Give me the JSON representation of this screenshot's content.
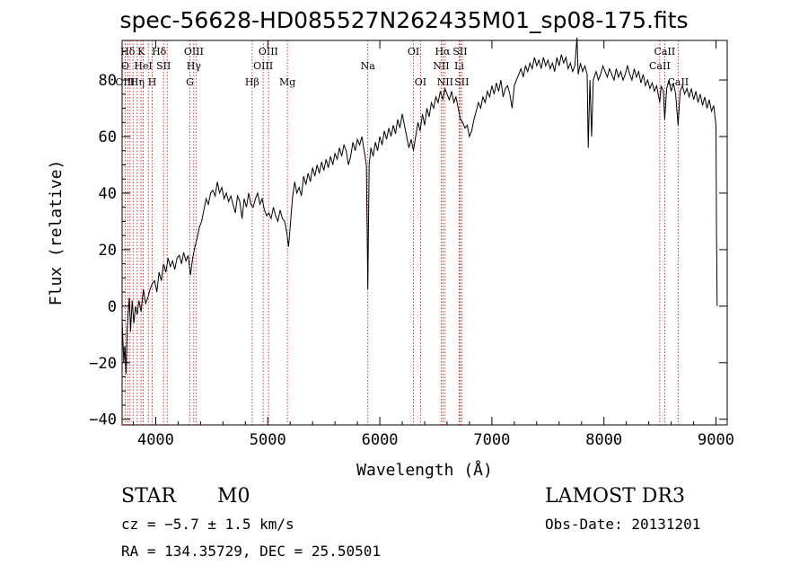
{
  "title": "spec-56628-HD085527N262435M01_sp08-175.fits",
  "info": {
    "class": "STAR",
    "subclass": "M0",
    "survey": "LAMOST DR3",
    "cz": "cz = −5.7 ± 1.5 km/s",
    "obs_date": "Obs-Date: 20131201",
    "coords": "RA = 134.35729, DEC =  25.50501"
  },
  "chart_data": {
    "type": "line",
    "xlabel": "Wavelength (Å)",
    "ylabel": "Flux (relative)",
    "xlim": [
      3700,
      9100
    ],
    "ylim": [
      -42,
      94
    ],
    "xticks": [
      4000,
      5000,
      6000,
      7000,
      8000,
      9000
    ],
    "yticks": [
      -40,
      -20,
      0,
      20,
      40,
      60,
      80
    ],
    "line_color": "#cc0000",
    "spectrum_color": "#000000",
    "lines": [
      {
        "label": "Hδ",
        "x": 3750,
        "row": 0
      },
      {
        "label": "K",
        "x": 3870,
        "row": 0
      },
      {
        "label": "Hδ",
        "x": 4030,
        "row": 0
      },
      {
        "label": "OIII",
        "x": 4340,
        "row": 0
      },
      {
        "label": "OIII",
        "x": 5005,
        "row": 0
      },
      {
        "label": "OI",
        "x": 6300,
        "row": 0
      },
      {
        "label": "Hα",
        "x": 6560,
        "row": 0
      },
      {
        "label": "SII",
        "x": 6716,
        "row": 0
      },
      {
        "label": "CaII",
        "x": 8542,
        "row": 0
      },
      {
        "label": "O",
        "x": 3727,
        "row": 1
      },
      {
        "label": "HeI",
        "x": 3889,
        "row": 1
      },
      {
        "label": "SII",
        "x": 4070,
        "row": 1
      },
      {
        "label": "Hγ",
        "x": 4340,
        "row": 1
      },
      {
        "label": "OIII",
        "x": 4959,
        "row": 1
      },
      {
        "label": "Na",
        "x": 5893,
        "row": 1
      },
      {
        "label": "NII",
        "x": 6548,
        "row": 1
      },
      {
        "label": "Li",
        "x": 6708,
        "row": 1
      },
      {
        "label": "CaII",
        "x": 8498,
        "row": 1
      },
      {
        "label": "OIII",
        "x": 3727,
        "row": 2
      },
      {
        "label": "Hη",
        "x": 3835,
        "row": 2
      },
      {
        "label": "H",
        "x": 3969,
        "row": 2
      },
      {
        "label": "G",
        "x": 4305,
        "row": 2
      },
      {
        "label": "Hβ",
        "x": 4861,
        "row": 2
      },
      {
        "label": "Mg",
        "x": 5175,
        "row": 2
      },
      {
        "label": "OI",
        "x": 6363,
        "row": 2
      },
      {
        "label": "NII",
        "x": 6583,
        "row": 2
      },
      {
        "label": "SII",
        "x": 6731,
        "row": 2
      },
      {
        "label": "CaII",
        "x": 8662,
        "row": 2
      }
    ],
    "line_markers": [
      3727,
      3750,
      3771,
      3798,
      3835,
      3869,
      3889,
      3934,
      3969,
      4070,
      4102,
      4305,
      4340,
      4363,
      4861,
      4959,
      5007,
      5175,
      5893,
      6300,
      6363,
      6548,
      6563,
      6583,
      6708,
      6716,
      6731,
      8498,
      8542,
      8662
    ],
    "spectrum": [
      [
        3700,
        -5
      ],
      [
        3715,
        -20
      ],
      [
        3725,
        -14
      ],
      [
        3735,
        -24
      ],
      [
        3745,
        -8
      ],
      [
        3755,
        -2
      ],
      [
        3765,
        3
      ],
      [
        3775,
        -9
      ],
      [
        3790,
        2
      ],
      [
        3805,
        -6
      ],
      [
        3820,
        0
      ],
      [
        3835,
        -3
      ],
      [
        3850,
        2
      ],
      [
        3870,
        -2
      ],
      [
        3890,
        6
      ],
      [
        3910,
        1
      ],
      [
        3930,
        3
      ],
      [
        3950,
        6
      ],
      [
        3970,
        8
      ],
      [
        3990,
        9
      ],
      [
        4010,
        5
      ],
      [
        4030,
        12
      ],
      [
        4050,
        9
      ],
      [
        4070,
        15
      ],
      [
        4090,
        12
      ],
      [
        4110,
        17
      ],
      [
        4130,
        14
      ],
      [
        4150,
        16
      ],
      [
        4170,
        13
      ],
      [
        4190,
        17
      ],
      [
        4210,
        18
      ],
      [
        4230,
        15
      ],
      [
        4250,
        19
      ],
      [
        4270,
        16
      ],
      [
        4290,
        18
      ],
      [
        4310,
        11
      ],
      [
        4330,
        17
      ],
      [
        4350,
        21
      ],
      [
        4370,
        24
      ],
      [
        4390,
        28
      ],
      [
        4410,
        30
      ],
      [
        4430,
        34
      ],
      [
        4450,
        38
      ],
      [
        4470,
        36
      ],
      [
        4490,
        40
      ],
      [
        4510,
        41
      ],
      [
        4530,
        39
      ],
      [
        4550,
        44
      ],
      [
        4570,
        40
      ],
      [
        4590,
        42
      ],
      [
        4610,
        38
      ],
      [
        4630,
        40
      ],
      [
        4650,
        37
      ],
      [
        4670,
        39
      ],
      [
        4690,
        36
      ],
      [
        4710,
        33
      ],
      [
        4730,
        39
      ],
      [
        4750,
        37
      ],
      [
        4770,
        31
      ],
      [
        4790,
        38
      ],
      [
        4810,
        35
      ],
      [
        4830,
        40
      ],
      [
        4850,
        36
      ],
      [
        4870,
        35
      ],
      [
        4890,
        38
      ],
      [
        4910,
        40
      ],
      [
        4930,
        36
      ],
      [
        4950,
        38
      ],
      [
        4970,
        34
      ],
      [
        4990,
        32
      ],
      [
        5010,
        33
      ],
      [
        5030,
        31
      ],
      [
        5050,
        35
      ],
      [
        5070,
        32
      ],
      [
        5090,
        30
      ],
      [
        5110,
        34
      ],
      [
        5130,
        31
      ],
      [
        5150,
        30
      ],
      [
        5170,
        26
      ],
      [
        5185,
        21
      ],
      [
        5200,
        28
      ],
      [
        5220,
        38
      ],
      [
        5240,
        44
      ],
      [
        5260,
        40
      ],
      [
        5280,
        42
      ],
      [
        5300,
        39
      ],
      [
        5320,
        46
      ],
      [
        5340,
        43
      ],
      [
        5360,
        47
      ],
      [
        5380,
        44
      ],
      [
        5400,
        49
      ],
      [
        5420,
        46
      ],
      [
        5440,
        50
      ],
      [
        5460,
        47
      ],
      [
        5480,
        51
      ],
      [
        5500,
        48
      ],
      [
        5520,
        52
      ],
      [
        5540,
        49
      ],
      [
        5560,
        53
      ],
      [
        5580,
        50
      ],
      [
        5600,
        54
      ],
      [
        5620,
        52
      ],
      [
        5640,
        56
      ],
      [
        5660,
        53
      ],
      [
        5680,
        57
      ],
      [
        5700,
        55
      ],
      [
        5720,
        50
      ],
      [
        5740,
        53
      ],
      [
        5760,
        58
      ],
      [
        5780,
        55
      ],
      [
        5800,
        59
      ],
      [
        5820,
        57
      ],
      [
        5840,
        60
      ],
      [
        5860,
        55
      ],
      [
        5880,
        50
      ],
      [
        5893,
        6
      ],
      [
        5905,
        50
      ],
      [
        5920,
        56
      ],
      [
        5940,
        53
      ],
      [
        5960,
        58
      ],
      [
        5980,
        55
      ],
      [
        6000,
        60
      ],
      [
        6020,
        57
      ],
      [
        6040,
        62
      ],
      [
        6060,
        59
      ],
      [
        6080,
        63
      ],
      [
        6100,
        60
      ],
      [
        6120,
        64
      ],
      [
        6140,
        61
      ],
      [
        6160,
        66
      ],
      [
        6180,
        63
      ],
      [
        6200,
        68
      ],
      [
        6220,
        64
      ],
      [
        6240,
        60
      ],
      [
        6260,
        56
      ],
      [
        6280,
        59
      ],
      [
        6300,
        55
      ],
      [
        6320,
        60
      ],
      [
        6340,
        65
      ],
      [
        6360,
        62
      ],
      [
        6380,
        68
      ],
      [
        6400,
        64
      ],
      [
        6420,
        70
      ],
      [
        6440,
        67
      ],
      [
        6460,
        72
      ],
      [
        6480,
        70
      ],
      [
        6500,
        74
      ],
      [
        6520,
        72
      ],
      [
        6540,
        76
      ],
      [
        6563,
        73
      ],
      [
        6580,
        77
      ],
      [
        6600,
        75
      ],
      [
        6620,
        73
      ],
      [
        6640,
        76
      ],
      [
        6660,
        72
      ],
      [
        6680,
        74
      ],
      [
        6700,
        70
      ],
      [
        6720,
        66
      ],
      [
        6740,
        65
      ],
      [
        6760,
        63
      ],
      [
        6780,
        64
      ],
      [
        6800,
        60
      ],
      [
        6820,
        62
      ],
      [
        6840,
        66
      ],
      [
        6860,
        69
      ],
      [
        6880,
        72
      ],
      [
        6900,
        70
      ],
      [
        6920,
        74
      ],
      [
        6940,
        72
      ],
      [
        6960,
        76
      ],
      [
        6980,
        74
      ],
      [
        7000,
        78
      ],
      [
        7020,
        75
      ],
      [
        7040,
        79
      ],
      [
        7060,
        76
      ],
      [
        7080,
        80
      ],
      [
        7100,
        74
      ],
      [
        7120,
        77
      ],
      [
        7140,
        78
      ],
      [
        7160,
        75
      ],
      [
        7180,
        70
      ],
      [
        7200,
        78
      ],
      [
        7220,
        80
      ],
      [
        7240,
        82
      ],
      [
        7260,
        84
      ],
      [
        7280,
        81
      ],
      [
        7300,
        85
      ],
      [
        7320,
        83
      ],
      [
        7340,
        86
      ],
      [
        7360,
        84
      ],
      [
        7380,
        88
      ],
      [
        7400,
        85
      ],
      [
        7420,
        87
      ],
      [
        7440,
        84
      ],
      [
        7460,
        88
      ],
      [
        7480,
        85
      ],
      [
        7500,
        87
      ],
      [
        7520,
        84
      ],
      [
        7540,
        86
      ],
      [
        7560,
        83
      ],
      [
        7580,
        88
      ],
      [
        7600,
        85
      ],
      [
        7620,
        89
      ],
      [
        7640,
        86
      ],
      [
        7660,
        88
      ],
      [
        7680,
        84
      ],
      [
        7700,
        86
      ],
      [
        7720,
        83
      ],
      [
        7740,
        85
      ],
      [
        7760,
        95
      ],
      [
        7770,
        82
      ],
      [
        7790,
        86
      ],
      [
        7810,
        83
      ],
      [
        7830,
        85
      ],
      [
        7850,
        82
      ],
      [
        7860,
        56
      ],
      [
        7875,
        80
      ],
      [
        7890,
        60
      ],
      [
        7905,
        80
      ],
      [
        7930,
        83
      ],
      [
        7950,
        80
      ],
      [
        7970,
        82
      ],
      [
        7990,
        85
      ],
      [
        8010,
        83
      ],
      [
        8030,
        81
      ],
      [
        8050,
        84
      ],
      [
        8070,
        82
      ],
      [
        8090,
        80
      ],
      [
        8110,
        84
      ],
      [
        8130,
        81
      ],
      [
        8150,
        83
      ],
      [
        8170,
        80
      ],
      [
        8190,
        82
      ],
      [
        8210,
        85
      ],
      [
        8230,
        82
      ],
      [
        8250,
        80
      ],
      [
        8270,
        84
      ],
      [
        8290,
        81
      ],
      [
        8310,
        83
      ],
      [
        8330,
        79
      ],
      [
        8350,
        82
      ],
      [
        8370,
        78
      ],
      [
        8390,
        80
      ],
      [
        8410,
        77
      ],
      [
        8430,
        79
      ],
      [
        8450,
        76
      ],
      [
        8470,
        78
      ],
      [
        8498,
        72
      ],
      [
        8510,
        78
      ],
      [
        8530,
        76
      ],
      [
        8542,
        66
      ],
      [
        8560,
        77
      ],
      [
        8580,
        80
      ],
      [
        8600,
        76
      ],
      [
        8620,
        79
      ],
      [
        8640,
        75
      ],
      [
        8662,
        64
      ],
      [
        8680,
        76
      ],
      [
        8700,
        78
      ],
      [
        8720,
        75
      ],
      [
        8740,
        77
      ],
      [
        8760,
        74
      ],
      [
        8780,
        77
      ],
      [
        8800,
        73
      ],
      [
        8820,
        76
      ],
      [
        8840,
        72
      ],
      [
        8860,
        75
      ],
      [
        8880,
        71
      ],
      [
        8900,
        74
      ],
      [
        8920,
        70
      ],
      [
        8940,
        73
      ],
      [
        8960,
        69
      ],
      [
        8980,
        71
      ],
      [
        9000,
        64
      ],
      [
        9005,
        26
      ],
      [
        9010,
        0
      ]
    ]
  }
}
